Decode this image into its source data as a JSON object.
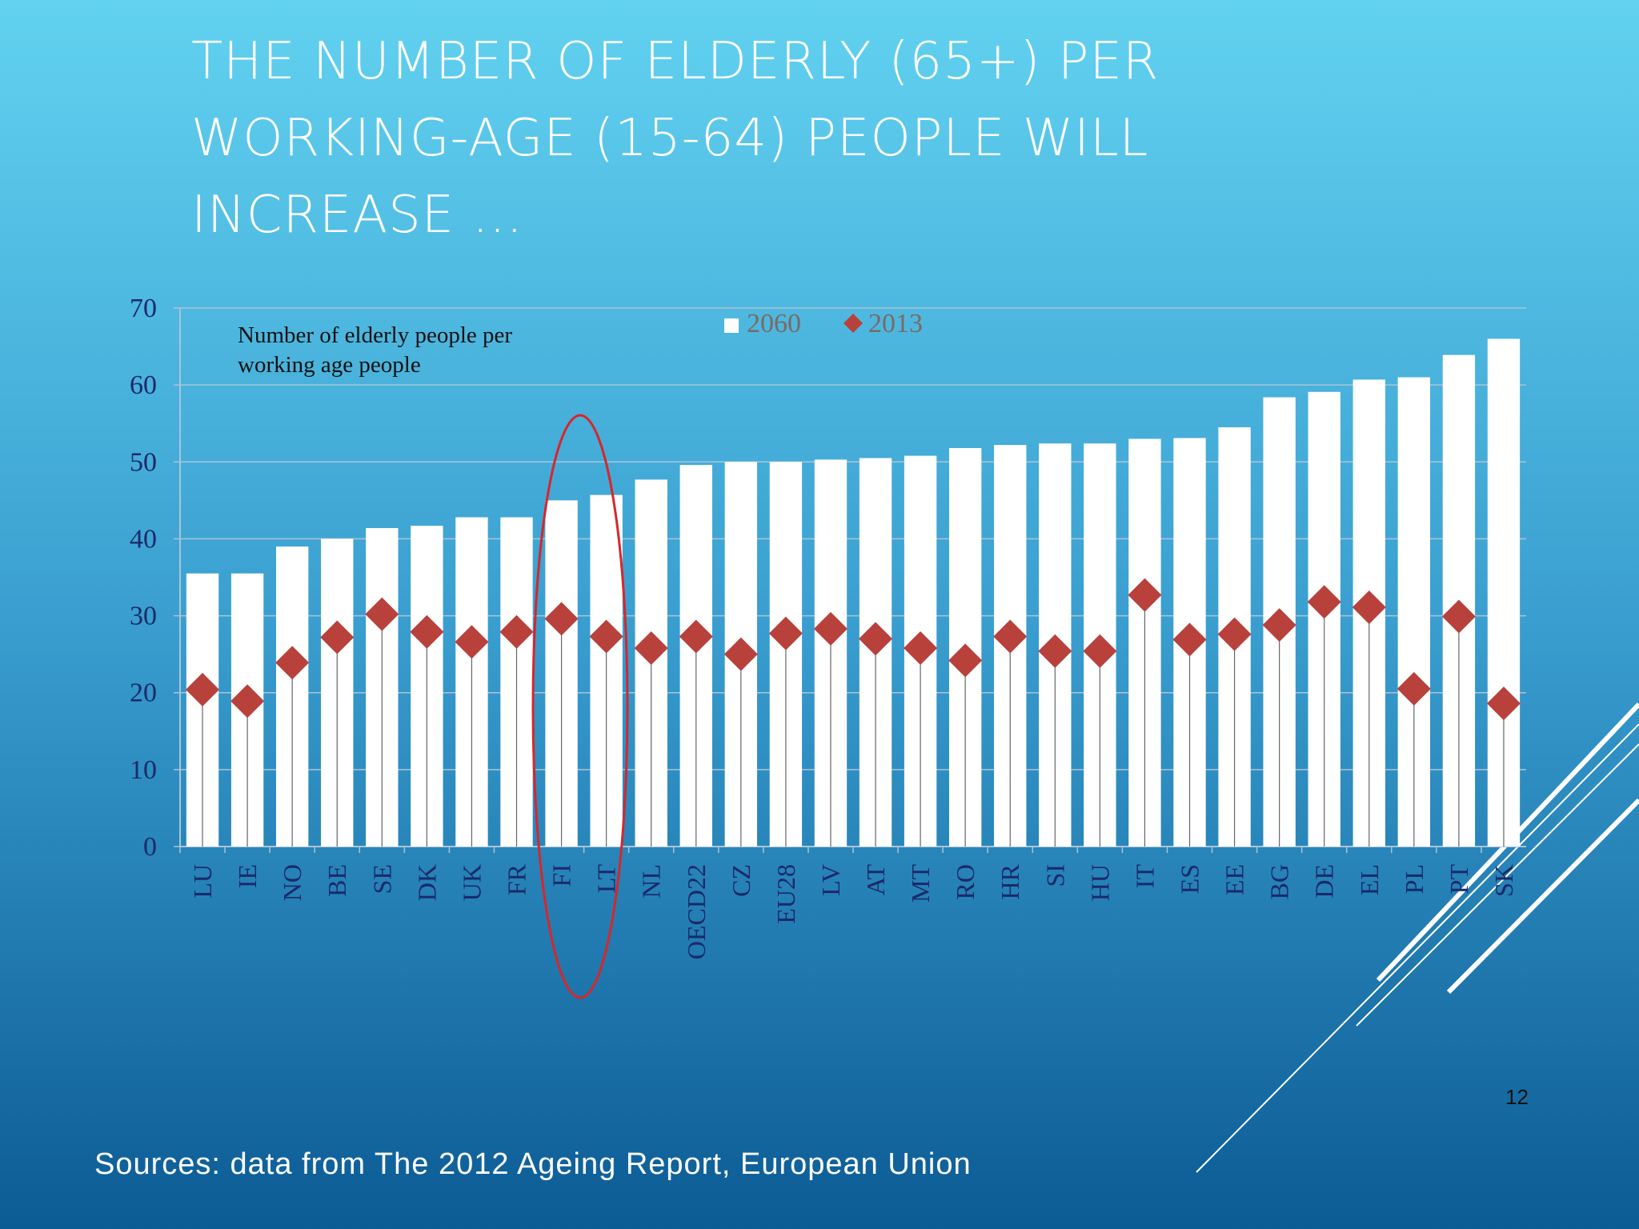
{
  "chart_data": {
    "type": "bar_marker",
    "title": [
      "THE NUMBER OF ELDERLY (65+) PER",
      "WORKING-AGE (15-64) PEOPLE WILL",
      "INCREASE …"
    ],
    "annotation": [
      "Number of elderly people per",
      "working age  people"
    ],
    "categories": [
      "LU",
      "IE",
      "NO",
      "BE",
      "SE",
      "DK",
      "UK",
      "FR",
      "FI",
      "LT",
      "NL",
      "OECD22",
      "CZ",
      "EU28",
      "LV",
      "AT",
      "MT",
      "RO",
      "HR",
      "SI",
      "HU",
      "IT",
      "ES",
      "EE",
      "BG",
      "DE",
      "EL",
      "PL",
      "PT",
      "SK"
    ],
    "series": [
      {
        "name": "2060",
        "color": "#ffffff",
        "values": [
          35.5,
          35.5,
          39.0,
          40.0,
          41.4,
          41.7,
          42.8,
          42.8,
          45.0,
          45.7,
          47.7,
          49.6,
          50.0,
          50.0,
          50.3,
          50.5,
          50.8,
          51.8,
          52.2,
          52.4,
          52.4,
          53.0,
          53.1,
          54.5,
          58.4,
          59.1,
          60.7,
          61.0,
          63.9,
          66.0
        ]
      },
      {
        "name": "2013",
        "color": "#b8413c",
        "values": [
          20.4,
          18.9,
          23.9,
          27.2,
          30.2,
          27.9,
          26.6,
          27.9,
          29.6,
          27.3,
          25.8,
          27.3,
          25.0,
          27.7,
          28.3,
          27.0,
          25.8,
          24.2,
          27.3,
          25.4,
          25.4,
          32.7,
          26.9,
          27.6,
          28.8,
          31.8,
          31.1,
          20.5,
          29.9,
          18.6
        ]
      }
    ],
    "ylim": [
      0,
      70
    ],
    "yticks": [
      0,
      10,
      20,
      30,
      40,
      50,
      60,
      70
    ],
    "grid": true,
    "legend": "top"
  },
  "slide": {
    "source": "Sources: data from The 2012 Ageing Report, European Union",
    "page_number": "12"
  }
}
